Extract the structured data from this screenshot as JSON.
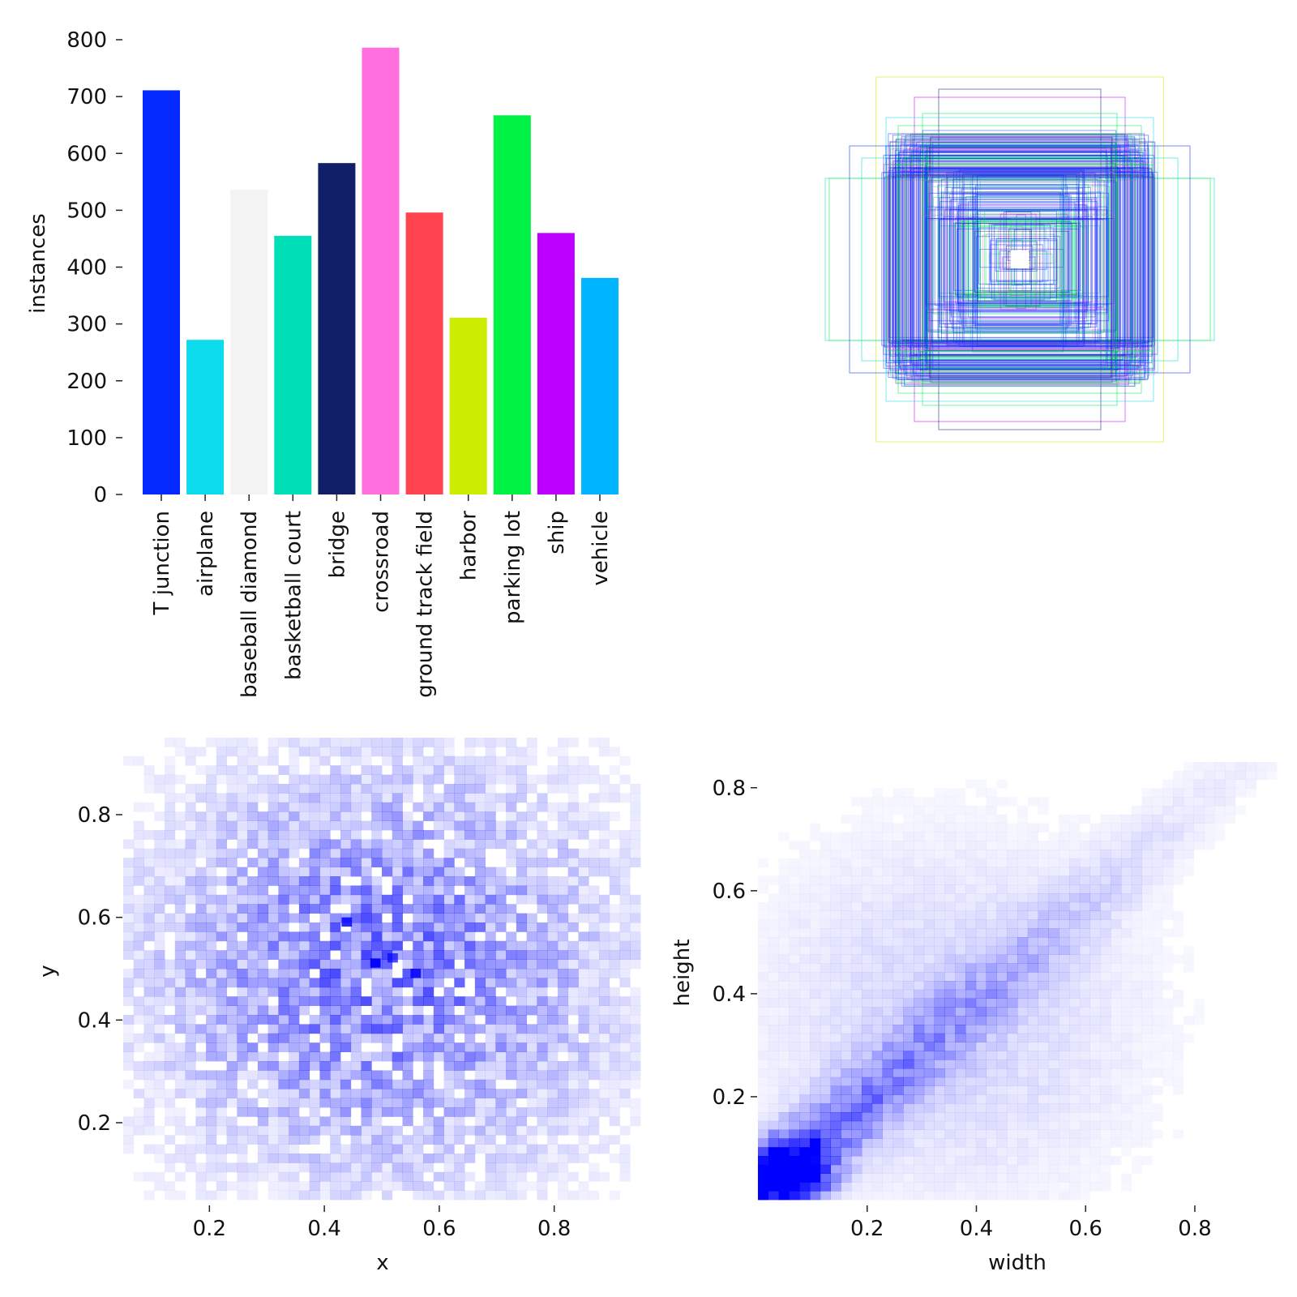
{
  "chart_data": [
    {
      "type": "bar",
      "title": "",
      "xlabel": "",
      "ylabel": "instances",
      "ylim": [
        0,
        800
      ],
      "yticks": [
        "0",
        "100",
        "200",
        "300",
        "400",
        "500",
        "600",
        "700",
        "800"
      ],
      "categories": [
        "T junction",
        "airplane",
        "baseball diamond",
        "basketball court",
        "bridge",
        "crossroad",
        "ground track field",
        "harbor",
        "parking lot",
        "ship",
        "vehicle"
      ],
      "values": [
        711,
        272,
        536,
        455,
        583,
        786,
        496,
        311,
        667,
        460,
        381
      ],
      "colors": [
        "#042aff",
        "#0bdbeb",
        "#f3f3f3",
        "#00dfb7",
        "#111f68",
        "#ff6fdd",
        "#ff444f",
        "#cced00",
        "#00f344",
        "#bd00ff",
        "#00b4ff"
      ]
    },
    {
      "type": "scatter",
      "description_kind": "bounding-box overlay",
      "title": "",
      "box_colors": [
        "#042aff",
        "#00f344",
        "#ff6fdd",
        "#cced00",
        "#00dfb7",
        "#bd00ff",
        "#0bdbeb",
        "#111f68"
      ]
    },
    {
      "type": "heatmap",
      "title": "",
      "xlabel": "x",
      "ylabel": "y",
      "xlim": [
        0.05,
        0.95
      ],
      "ylim": [
        0.05,
        0.95
      ],
      "xticks": [
        "0.2",
        "0.4",
        "0.6",
        "0.8"
      ],
      "yticks": [
        "0.2",
        "0.4",
        "0.6",
        "0.8"
      ],
      "color": "#0000ff",
      "peak_center": [
        0.5,
        0.5
      ]
    },
    {
      "type": "heatmap",
      "title": "",
      "xlabel": "width",
      "ylabel": "height",
      "xlim": [
        0,
        0.95
      ],
      "ylim": [
        0.0,
        0.85
      ],
      "xticks": [
        "0.2",
        "0.4",
        "0.6",
        "0.8"
      ],
      "yticks": [
        "0.2",
        "0.4",
        "0.6",
        "0.8"
      ],
      "color": "#0000ff",
      "peak_center": [
        0.06,
        0.05
      ]
    }
  ]
}
